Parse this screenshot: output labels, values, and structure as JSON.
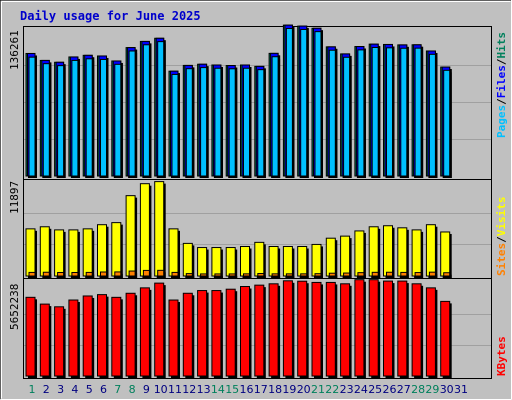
{
  "title": "Daily usage for June 2025",
  "colors": {
    "hits": "#00805c",
    "files": "#0000ff",
    "pages": "#00c0ff",
    "visits": "#ffff00",
    "sites": "#ff8000",
    "kbytes": "#ff0000",
    "weekend_day": "#00805c",
    "weekday": "#000080",
    "panel": "#c0c0c0",
    "grid": "#a0a0a0"
  },
  "chart_data": [
    {
      "type": "bar",
      "title": "Daily usage for June 2025",
      "ylabel_parts": [
        "Pages",
        "/",
        "Files",
        "/",
        "Hits"
      ],
      "ymax_label": "136261",
      "ylim": [
        0,
        136261
      ],
      "categories": [
        "1",
        "2",
        "3",
        "4",
        "5",
        "6",
        "7",
        "8",
        "9",
        "10",
        "11",
        "12",
        "13",
        "14",
        "15",
        "16",
        "17",
        "18",
        "19",
        "20",
        "21",
        "22",
        "23",
        "24",
        "25",
        "26",
        "27",
        "28",
        "29",
        "30",
        "31"
      ],
      "series": [
        {
          "name": "Hits",
          "values": [
            112800,
            106400,
            104700,
            109600,
            111100,
            110500,
            105900,
            118200,
            123900,
            126800,
            96500,
            101800,
            102900,
            102200,
            101700,
            102200,
            100900,
            112900,
            138900,
            138000,
            136000,
            118900,
            112400,
            119200,
            121400,
            121100,
            120700,
            120800,
            115100,
            100300,
            0
          ]
        },
        {
          "name": "Files",
          "values": [
            112800,
            106400,
            104700,
            109600,
            111100,
            110500,
            105900,
            118200,
            123900,
            126800,
            96500,
            101800,
            102900,
            102200,
            101700,
            102200,
            100900,
            112900,
            138900,
            138000,
            136000,
            118900,
            112400,
            119200,
            121400,
            121100,
            120700,
            120800,
            115100,
            100300,
            0
          ]
        },
        {
          "name": "Pages",
          "values": [
            109400,
            103400,
            101600,
            106400,
            107900,
            107300,
            102800,
            115100,
            120800,
            123700,
            93500,
            98800,
            99800,
            99200,
            98700,
            99200,
            97900,
            109800,
            135800,
            134900,
            132900,
            115800,
            109300,
            116100,
            118300,
            118000,
            117600,
            117700,
            112000,
            97300,
            0
          ]
        }
      ]
    },
    {
      "type": "bar",
      "ylabel_parts": [
        "Sites",
        "/",
        "Visits"
      ],
      "ymax_label": "11897",
      "ylim": [
        0,
        11897
      ],
      "categories": [
        "1",
        "2",
        "3",
        "4",
        "5",
        "6",
        "7",
        "8",
        "9",
        "10",
        "11",
        "12",
        "13",
        "14",
        "15",
        "16",
        "17",
        "18",
        "19",
        "20",
        "21",
        "22",
        "23",
        "24",
        "25",
        "26",
        "27",
        "28",
        "29",
        "30",
        "31"
      ],
      "series": [
        {
          "name": "Visits",
          "values": [
            5904,
            6164,
            5774,
            5774,
            5904,
            6424,
            6684,
            10062,
            11560,
            11820,
            5904,
            4084,
            3564,
            3564,
            3564,
            3694,
            4214,
            3694,
            3694,
            3694,
            3954,
            4734,
            4994,
            5644,
            6164,
            6294,
            6034,
            5774,
            6424,
            5514,
            0
          ]
        },
        {
          "name": "Sites",
          "values": [
            450,
            470,
            440,
            440,
            450,
            500,
            510,
            620,
            700,
            710,
            450,
            300,
            260,
            260,
            260,
            270,
            310,
            270,
            270,
            270,
            290,
            350,
            370,
            420,
            460,
            470,
            450,
            430,
            480,
            410,
            0
          ]
        }
      ]
    },
    {
      "type": "bar",
      "ylabel_parts": [
        "KBytes"
      ],
      "ymax_label": "5652238",
      "ylim": [
        0,
        5652238
      ],
      "categories": [
        "1",
        "2",
        "3",
        "4",
        "5",
        "6",
        "7",
        "8",
        "9",
        "10",
        "11",
        "12",
        "13",
        "14",
        "15",
        "16",
        "17",
        "18",
        "19",
        "20",
        "21",
        "22",
        "23",
        "24",
        "25",
        "26",
        "27",
        "28",
        "29",
        "30",
        "31"
      ],
      "series": [
        {
          "name": "KBytes",
          "values": [
            4782000,
            4370000,
            4206000,
            4618000,
            4864000,
            4946000,
            4781000,
            5028000,
            5357000,
            5645000,
            4617000,
            5028000,
            5193000,
            5193000,
            5275000,
            5439000,
            5522000,
            5604000,
            5786000,
            5761000,
            5687000,
            5687000,
            5604000,
            5852000,
            5852000,
            5769000,
            5769000,
            5604000,
            5357000,
            4535000,
            0
          ]
        }
      ]
    }
  ]
}
